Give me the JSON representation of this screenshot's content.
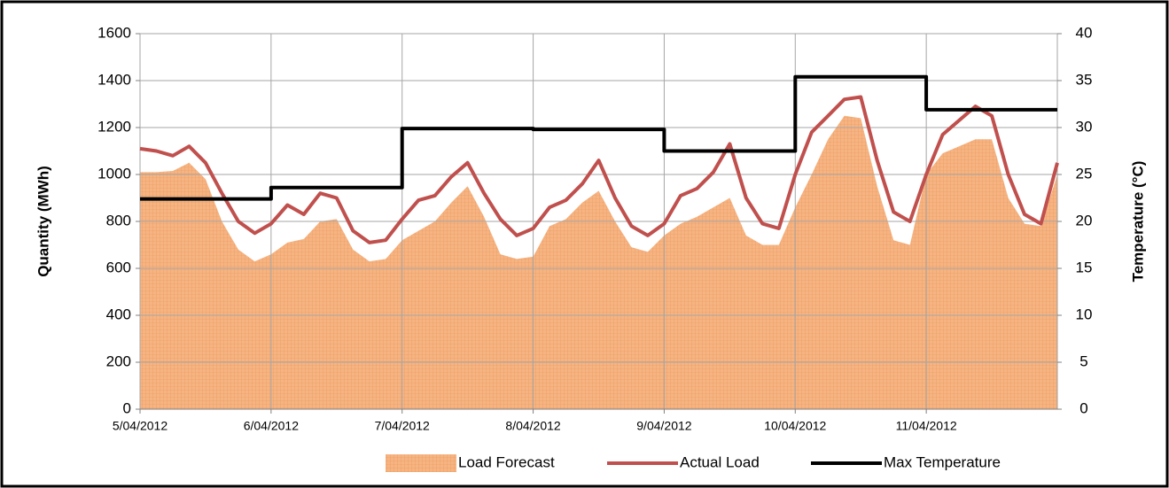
{
  "chart_data": {
    "type": "line",
    "y_label": "Quantity (MWh)",
    "y2_label": "Temperature (°C)",
    "x": [
      0,
      0.125,
      0.25,
      0.375,
      0.5,
      0.625,
      0.75,
      0.875,
      1,
      1.125,
      1.25,
      1.375,
      1.5,
      1.625,
      1.75,
      1.875,
      2,
      2.125,
      2.25,
      2.375,
      2.5,
      2.625,
      2.75,
      2.875,
      3,
      3.125,
      3.25,
      3.375,
      3.5,
      3.625,
      3.75,
      3.875,
      4,
      4.125,
      4.25,
      4.375,
      4.5,
      4.625,
      4.75,
      4.875,
      5,
      5.125,
      5.25,
      5.375,
      5.5,
      5.625,
      5.75,
      5.875,
      6,
      6.125,
      6.25,
      6.375,
      6.5,
      6.625,
      6.75,
      6.875,
      7
    ],
    "xlim": [
      0,
      7
    ],
    "xticks": [
      {
        "value": 0,
        "label": "5/04/2012"
      },
      {
        "value": 1,
        "label": "6/04/2012"
      },
      {
        "value": 2,
        "label": "7/04/2012"
      },
      {
        "value": 3,
        "label": "8/04/2012"
      },
      {
        "value": 4,
        "label": "9/04/2012"
      },
      {
        "value": 5,
        "label": "10/04/2012"
      },
      {
        "value": 6,
        "label": "11/04/2012"
      }
    ],
    "ylim": [
      0,
      1600
    ],
    "yticks": [
      0,
      200,
      400,
      600,
      800,
      1000,
      1200,
      1400,
      1600
    ],
    "y2lim": [
      0,
      40
    ],
    "y2ticks": [
      0,
      5,
      10,
      15,
      20,
      25,
      30,
      35,
      40
    ],
    "grid": true,
    "legend": "bottom",
    "series": [
      {
        "name": "Load Forecast",
        "kind": "area",
        "color": "#f6b482",
        "values": [
          1010,
          1010,
          1015,
          1050,
          980,
          800,
          680,
          630,
          660,
          710,
          725,
          800,
          810,
          680,
          630,
          640,
          720,
          760,
          800,
          880,
          950,
          820,
          660,
          640,
          650,
          780,
          810,
          880,
          930,
          800,
          690,
          670,
          740,
          790,
          820,
          860,
          900,
          740,
          700,
          700,
          860,
          1000,
          1150,
          1250,
          1240,
          950,
          720,
          700,
          1000,
          1090,
          1120,
          1150,
          1150,
          900,
          790,
          780,
          1000
        ]
      },
      {
        "name": "Actual Load",
        "kind": "line",
        "color": "#c0504d",
        "values": [
          1110,
          1100,
          1080,
          1120,
          1050,
          920,
          800,
          750,
          790,
          870,
          830,
          920,
          900,
          760,
          710,
          720,
          810,
          890,
          910,
          990,
          1050,
          920,
          810,
          740,
          770,
          860,
          890,
          960,
          1060,
          900,
          780,
          740,
          790,
          910,
          940,
          1010,
          1130,
          900,
          790,
          770,
          1000,
          1180,
          1250,
          1320,
          1330,
          1060,
          840,
          800,
          1000,
          1170,
          1230,
          1290,
          1250,
          1000,
          830,
          790,
          1050
        ]
      },
      {
        "name": "Max Temperature",
        "kind": "line",
        "axis": "y2",
        "color": "#000000",
        "x": [
          0,
          1,
          1,
          2,
          2,
          3,
          3,
          4,
          4,
          5,
          5,
          6,
          6,
          7
        ],
        "values": [
          22.4,
          22.4,
          23.6,
          23.6,
          29.9,
          29.9,
          29.8,
          29.8,
          27.5,
          27.5,
          35.4,
          35.4,
          31.9,
          31.9
        ]
      }
    ]
  }
}
